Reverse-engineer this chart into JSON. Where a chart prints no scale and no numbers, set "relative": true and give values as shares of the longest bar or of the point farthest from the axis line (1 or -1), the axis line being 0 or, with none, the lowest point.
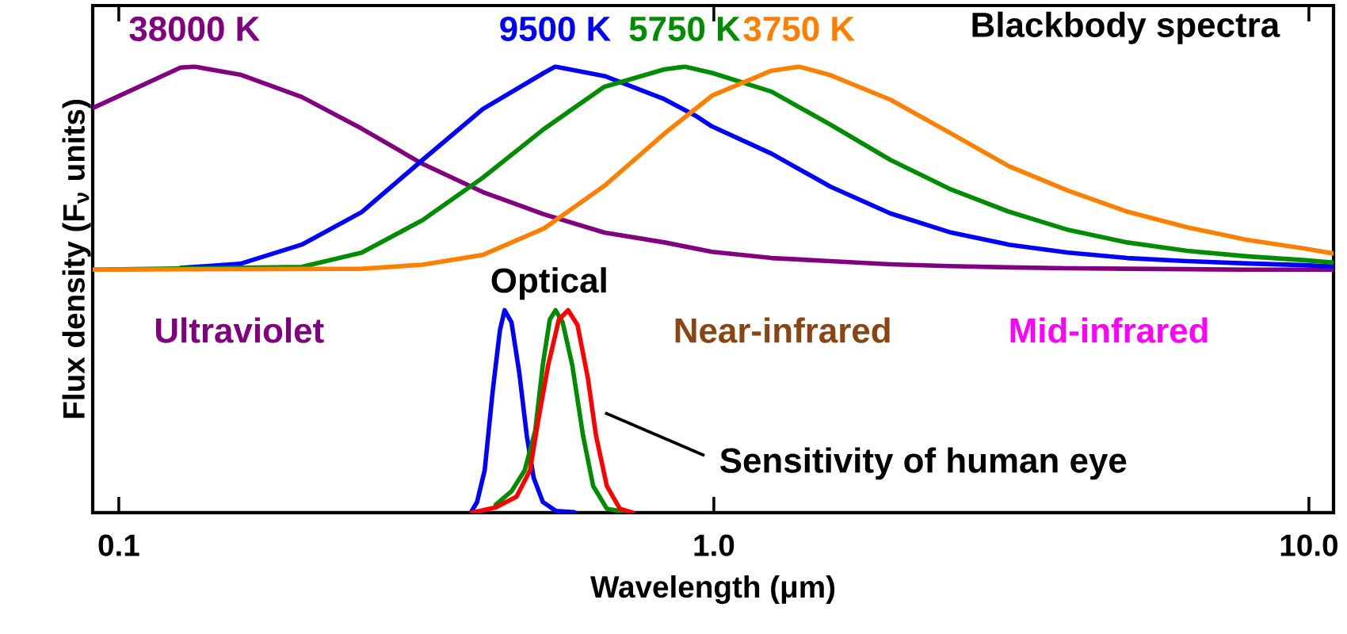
{
  "chart_data": {
    "type": "line",
    "title": "Blackbody spectra",
    "xlabel": "Wavelength (μm)",
    "ylabel": "Flux density (F$_{ν}$ units)",
    "relative": true,
    "log": "x",
    "xlim": [
      0.0904,
      11.0
    ],
    "xticks": [
      0.1,
      {
        "value": 1,
        "label": "1.0"
      },
      {
        "value": 10,
        "label": "10.0"
      }
    ],
    "annotations": [
      "Ultraviolet",
      "Optical",
      "Near-infrared",
      "Mid-infrared",
      "Sensitivity of human eye"
    ],
    "series": [
      {
        "name": "38000 K",
        "color": "#800080",
        "x": [
          0.0904,
          0.127,
          0.134,
          0.16,
          0.203,
          0.256,
          0.324,
          0.409,
          0.518,
          0.655,
          0.826,
          0.993,
          1.25,
          1.57,
          1.98,
          2.49,
          3.13,
          3.94,
          4.95,
          6.24,
          7.85,
          9.86,
          11.0
        ],
        "values": [
          0.907,
          0.998,
          1.0,
          0.982,
          0.932,
          0.861,
          0.782,
          0.719,
          0.669,
          0.628,
          0.606,
          0.585,
          0.571,
          0.564,
          0.557,
          0.553,
          0.55,
          0.548,
          0.547,
          0.546,
          0.545,
          0.545,
          0.545
        ]
      },
      {
        "name": "9500 K",
        "color": "#0000ff",
        "x": [
          0.127,
          0.16,
          0.203,
          0.256,
          0.324,
          0.409,
          0.518,
          0.541,
          0.655,
          0.826,
          0.929,
          0.993,
          1.25,
          1.57,
          1.98,
          2.49,
          3.13,
          3.94,
          4.95,
          6.24,
          7.85,
          9.86,
          11.0
        ],
        "values": [
          0.549,
          0.558,
          0.601,
          0.674,
          0.791,
          0.905,
          0.986,
          1.0,
          0.979,
          0.927,
          0.891,
          0.866,
          0.805,
          0.731,
          0.671,
          0.629,
          0.601,
          0.583,
          0.571,
          0.564,
          0.559,
          0.555,
          0.552
        ]
      },
      {
        "name": "5750 K",
        "color": "#008c00",
        "x": [
          0.0904,
          0.203,
          0.256,
          0.324,
          0.409,
          0.518,
          0.655,
          0.826,
          0.893,
          0.993,
          1.25,
          1.57,
          1.98,
          2.49,
          3.13,
          3.94,
          4.95,
          6.24,
          7.85,
          9.86,
          11.0
        ],
        "values": [
          0.545,
          0.551,
          0.583,
          0.656,
          0.751,
          0.86,
          0.955,
          0.994,
          1.0,
          0.986,
          0.944,
          0.87,
          0.791,
          0.726,
          0.675,
          0.634,
          0.606,
          0.587,
          0.575,
          0.566,
          0.561
        ]
      },
      {
        "name": "3750 K",
        "color": "#ff8000",
        "x": [
          0.0904,
          0.256,
          0.324,
          0.409,
          0.518,
          0.655,
          0.826,
          0.993,
          1.25,
          1.39,
          1.57,
          1.98,
          2.49,
          3.13,
          3.94,
          4.95,
          6.24,
          7.85,
          9.86,
          11.0
        ],
        "values": [
          0.545,
          0.547,
          0.556,
          0.578,
          0.637,
          0.733,
          0.85,
          0.935,
          0.991,
          1.0,
          0.981,
          0.926,
          0.852,
          0.777,
          0.722,
          0.675,
          0.64,
          0.612,
          0.592,
          0.581
        ]
      },
      {
        "color": "#0000ff",
        "x": [
          0.392,
          0.4,
          0.412,
          0.425,
          0.437,
          0.445,
          0.457,
          0.471,
          0.485,
          0.498,
          0.516,
          0.543,
          0.583
        ],
        "values": [
          0.004,
          0.024,
          0.095,
          0.273,
          0.409,
          0.454,
          0.427,
          0.314,
          0.172,
          0.078,
          0.024,
          0.004,
          0.001
        ]
      },
      {
        "color": "#008c00",
        "x": [
          0.43,
          0.457,
          0.481,
          0.501,
          0.516,
          0.53,
          0.542,
          0.557,
          0.578,
          0.603,
          0.627,
          0.661,
          0.716
        ],
        "values": [
          0.018,
          0.048,
          0.095,
          0.184,
          0.332,
          0.433,
          0.454,
          0.427,
          0.332,
          0.172,
          0.06,
          0.009,
          0.001
        ]
      },
      {
        "color": "#ff0000",
        "x": [
          0.392,
          0.43,
          0.466,
          0.491,
          0.506,
          0.527,
          0.549,
          0.569,
          0.59,
          0.614,
          0.634,
          0.661,
          0.695,
          0.731
        ],
        "values": [
          0,
          0.012,
          0.036,
          0.095,
          0.202,
          0.332,
          0.433,
          0.454,
          0.421,
          0.303,
          0.172,
          0.06,
          0.009,
          0
        ]
      }
    ]
  }
}
